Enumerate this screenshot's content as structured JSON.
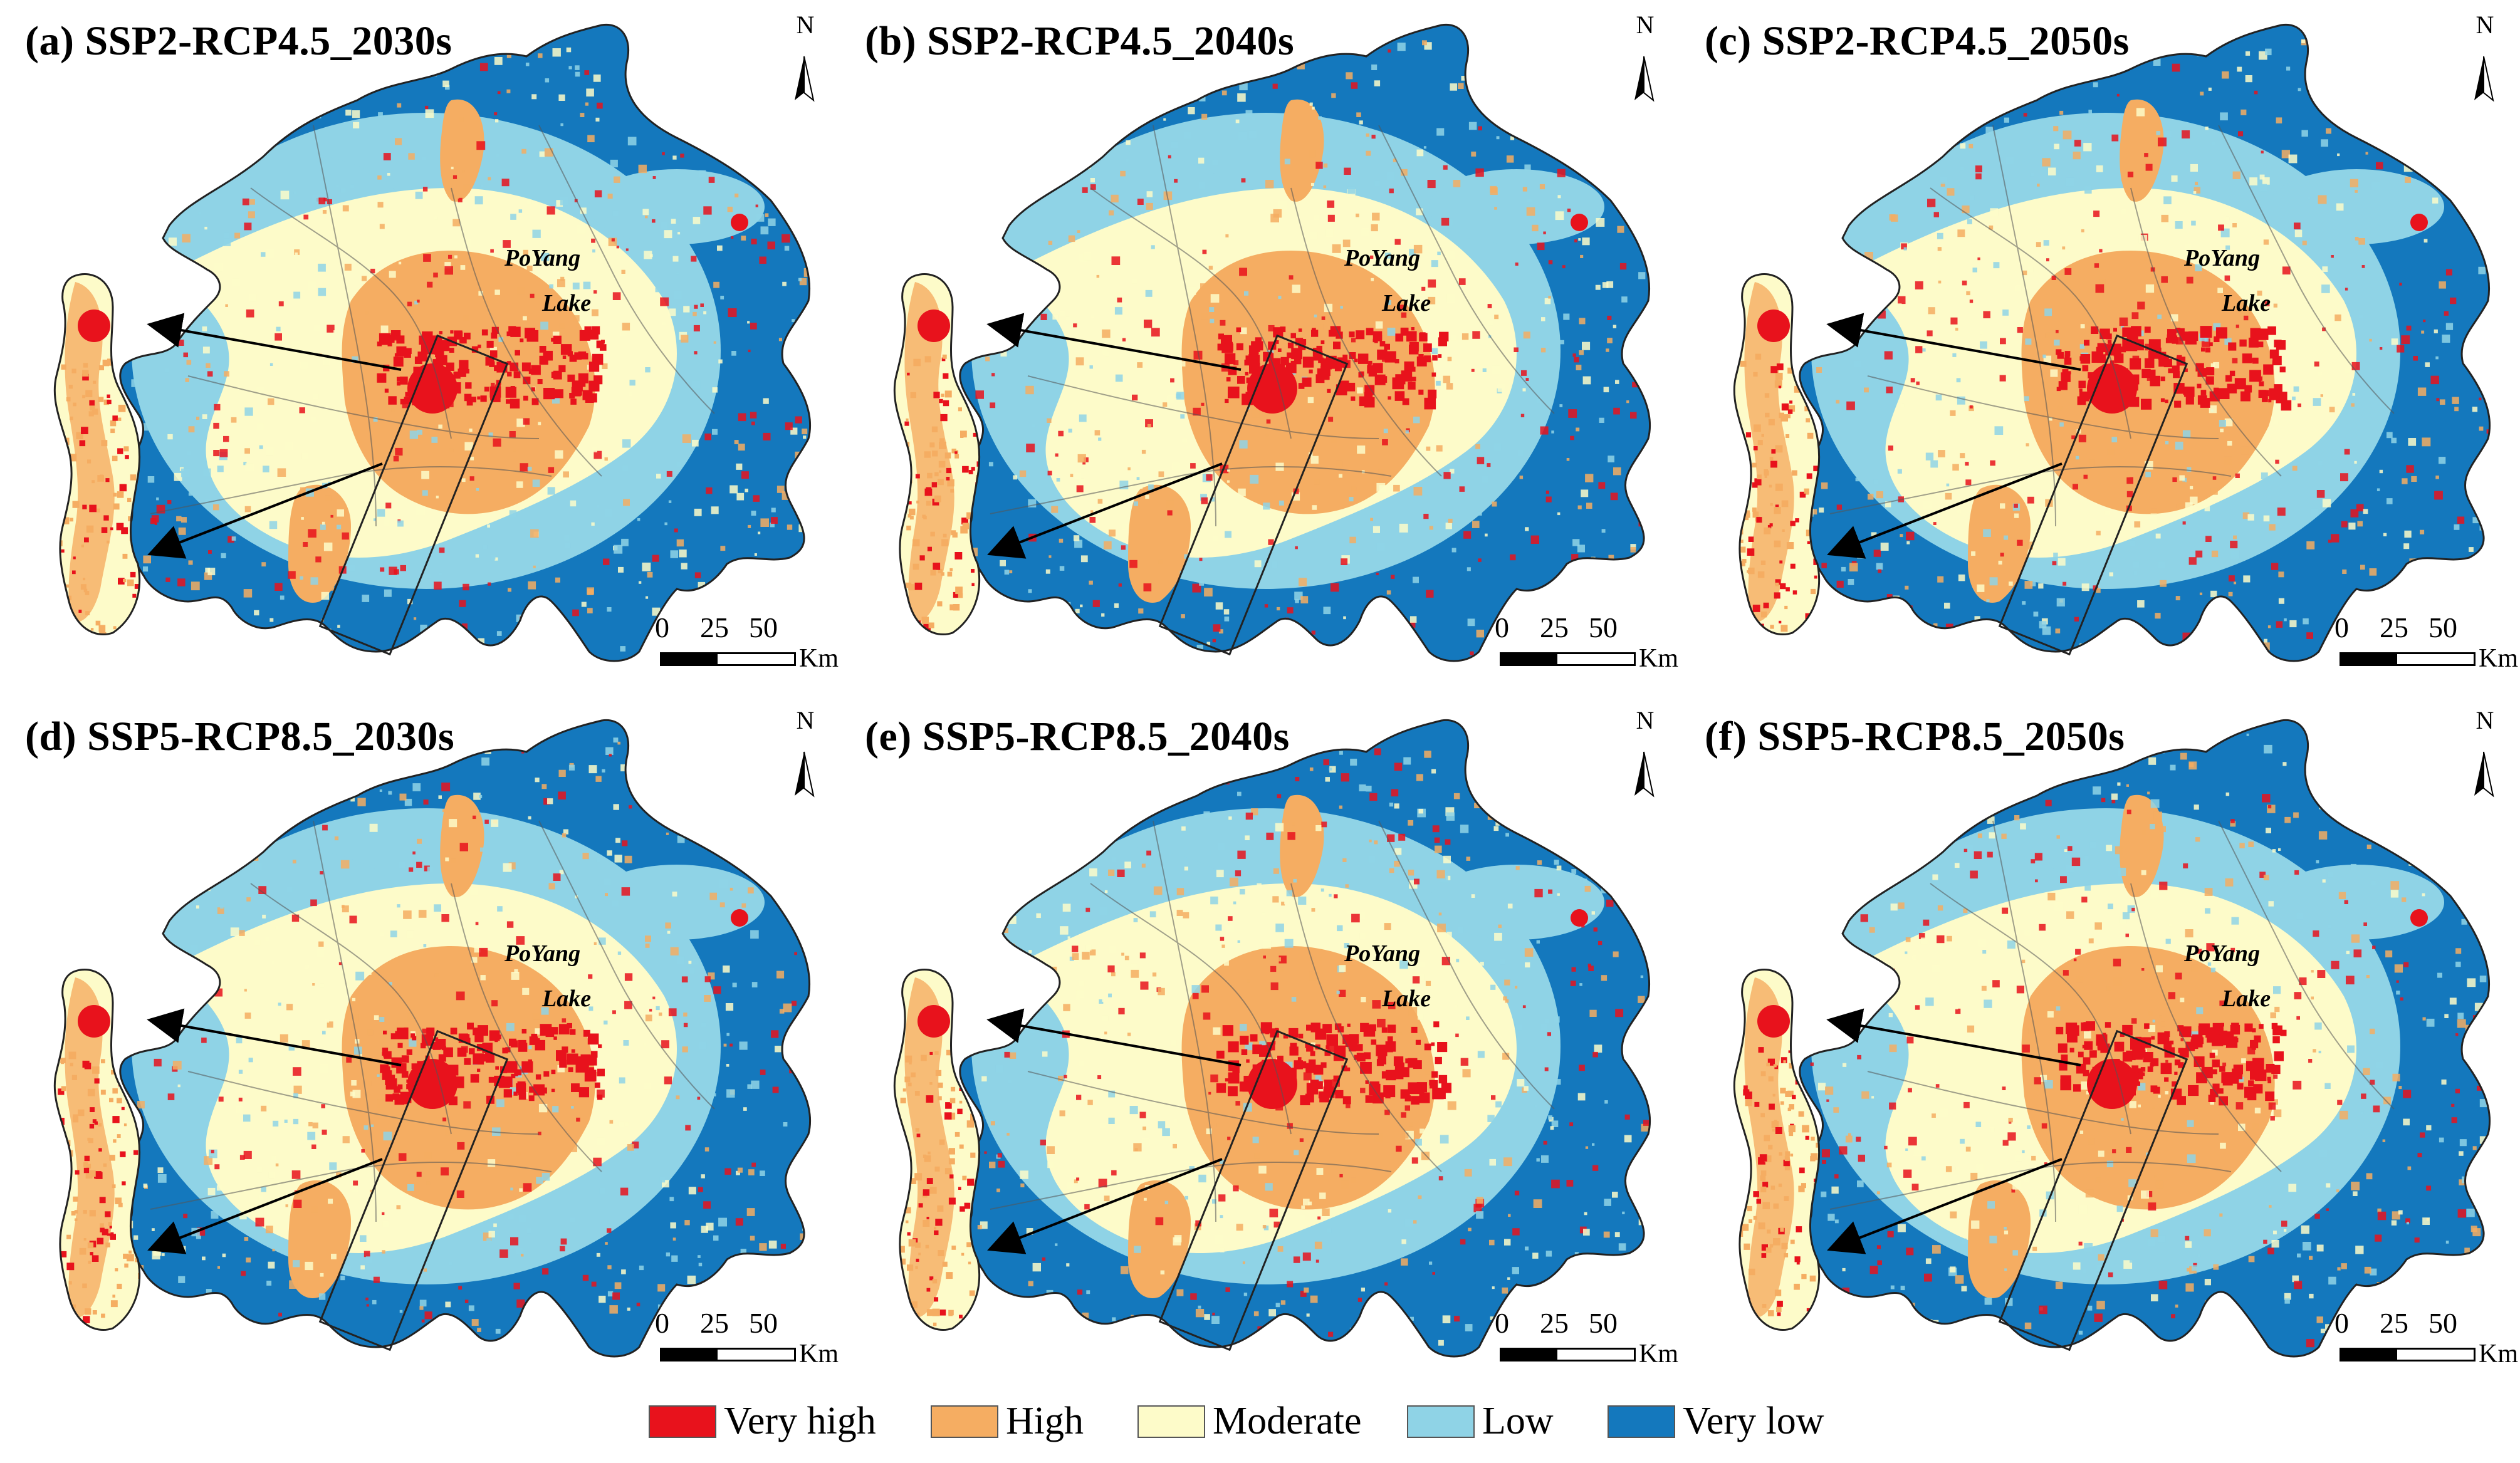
{
  "panels": [
    {
      "title": "(a) SSP2-RCP4.5_2030s"
    },
    {
      "title": "(b) SSP2-RCP4.5_2040s"
    },
    {
      "title": "(c) SSP2-RCP4.5_2050s"
    },
    {
      "title": "(d) SSP5-RCP8.5_2030s"
    },
    {
      "title": "(e) SSP5-RCP8.5_2040s"
    },
    {
      "title": "(f) SSP5-RCP8.5_2050s"
    }
  ],
  "north_label": "N",
  "lake_label_line1": "PoYang",
  "lake_label_line2": "Lake",
  "scale": {
    "ticks": [
      "0",
      "25",
      "50"
    ],
    "unit": "Km"
  },
  "legend": [
    {
      "label": "Very high",
      "color": "#e8121c"
    },
    {
      "label": "High",
      "color": "#f5ad62"
    },
    {
      "label": "Moderate",
      "color": "#fdfbc9"
    },
    {
      "label": "Low",
      "color": "#8fd3e6"
    },
    {
      "label": "Very low",
      "color": "#1478bd"
    }
  ],
  "colors": {
    "very_high": "#e8121c",
    "high": "#f5ad62",
    "moderate": "#fdfbc9",
    "low": "#8fd3e6",
    "very_low": "#1478bd"
  }
}
